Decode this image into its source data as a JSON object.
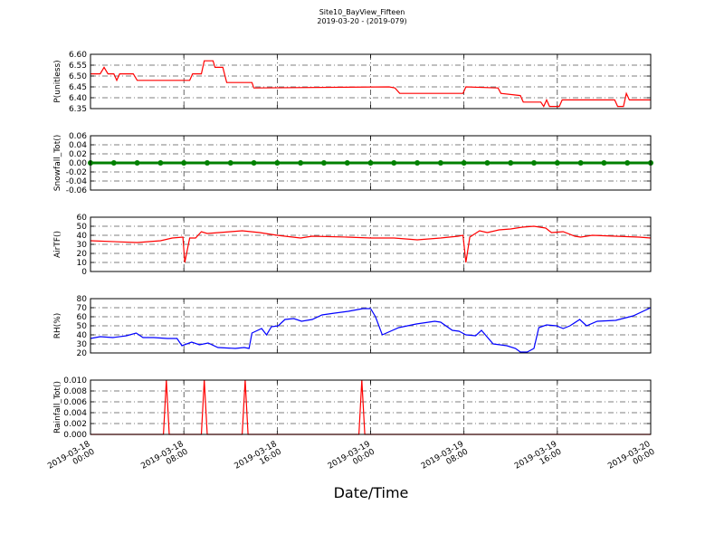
{
  "figure": {
    "title": "Site10_BayView_Fifteen",
    "subtitle": "2019-03-20 - (2019-079)",
    "xlabel": "Date/Time"
  },
  "chart_data": [
    {
      "type": "line",
      "ylabel": "P(unitless)",
      "color": "#ff0000",
      "grid": true,
      "xlim": [
        "2019-03-18 00:00",
        "2019-03-20 00:00"
      ],
      "xticks": [
        "2019-03-18 00:00",
        "2019-03-18 08:00",
        "2019-03-18 16:00",
        "2019-03-19 00:00",
        "2019-03-19 08:00",
        "2019-03-19 16:00",
        "2019-03-20 00:00"
      ],
      "ylim": [
        6.35,
        6.6
      ],
      "yticks": [
        6.35,
        {
          "value": 6.4,
          "label": "6.40"
        },
        6.45,
        {
          "value": 6.5,
          "label": "6.50"
        },
        6.55,
        {
          "value": 6.6,
          "label": "6.60"
        }
      ],
      "x": [
        "2019-03-18 00:00",
        "2019-03-18 00:50",
        "2019-03-18 01:10",
        "2019-03-18 01:30",
        "2019-03-18 02:00",
        "2019-03-18 02:15",
        "2019-03-18 02:30",
        "2019-03-18 03:40",
        "2019-03-18 04:00",
        "2019-03-18 08:30",
        "2019-03-18 08:45",
        "2019-03-18 09:30",
        "2019-03-18 09:45",
        "2019-03-18 10:30",
        "2019-03-18 10:40",
        "2019-03-18 11:20",
        "2019-03-18 11:40",
        "2019-03-18 13:50",
        "2019-03-18 14:00",
        "2019-03-19 01:35",
        "2019-03-19 02:05",
        "2019-03-19 02:30",
        "2019-03-19 07:55",
        "2019-03-19 08:10",
        "2019-03-19 10:55",
        "2019-03-19 11:10",
        "2019-03-19 12:50",
        "2019-03-19 13:05",
        "2019-03-19 14:35",
        "2019-03-19 14:50",
        "2019-03-19 15:05",
        "2019-03-19 15:20",
        "2019-03-19 16:10",
        "2019-03-19 16:25",
        "2019-03-19 20:55",
        "2019-03-19 21:10",
        "2019-03-19 21:40",
        "2019-03-19 21:55",
        "2019-03-19 22:10",
        "2019-03-20 00:00"
      ],
      "values": [
        6.51,
        6.51,
        6.54,
        6.51,
        6.51,
        6.48,
        6.51,
        6.51,
        6.48,
        6.48,
        6.51,
        6.51,
        6.57,
        6.57,
        6.54,
        6.54,
        6.47,
        6.47,
        6.445,
        6.45,
        6.445,
        6.42,
        6.42,
        6.45,
        6.445,
        6.42,
        6.41,
        6.38,
        6.38,
        6.36,
        6.39,
        6.36,
        6.36,
        6.39,
        6.39,
        6.36,
        6.36,
        6.42,
        6.39,
        6.39
      ]
    },
    {
      "type": "line",
      "ylabel": "Snowfall_Tot()",
      "color": "#008000",
      "marker": "o",
      "grid": true,
      "xlim": [
        "2019-03-18 00:00",
        "2019-03-20 00:00"
      ],
      "xticks": [
        "2019-03-18 00:00",
        "2019-03-18 08:00",
        "2019-03-18 16:00",
        "2019-03-19 00:00",
        "2019-03-19 08:00",
        "2019-03-19 16:00",
        "2019-03-20 00:00"
      ],
      "ylim": [
        -0.06,
        0.06
      ],
      "yticks": [
        -0.06,
        -0.04,
        -0.02,
        {
          "value": 0,
          "label": "0.00"
        },
        0.02,
        0.04,
        0.06
      ],
      "x": [
        "2019-03-18 00:00",
        "2019-03-18 02:00",
        "2019-03-18 04:00",
        "2019-03-18 06:00",
        "2019-03-18 08:00",
        "2019-03-18 10:00",
        "2019-03-18 12:00",
        "2019-03-18 14:00",
        "2019-03-18 16:00",
        "2019-03-18 18:00",
        "2019-03-18 20:00",
        "2019-03-18 22:00",
        "2019-03-19 00:00",
        "2019-03-19 02:00",
        "2019-03-19 04:00",
        "2019-03-19 06:00",
        "2019-03-19 08:00",
        "2019-03-19 10:00",
        "2019-03-19 12:00",
        "2019-03-19 14:00",
        "2019-03-19 16:00",
        "2019-03-19 18:00",
        "2019-03-19 20:00",
        "2019-03-19 22:00",
        "2019-03-20 00:00"
      ],
      "values": [
        0,
        0,
        0,
        0,
        0,
        0,
        0,
        0,
        0,
        0,
        0,
        0,
        0,
        0,
        0,
        0,
        0,
        0,
        0,
        0,
        0,
        0,
        0,
        0,
        0
      ]
    },
    {
      "type": "line",
      "ylabel": "AirTF()",
      "color": "#ff0000",
      "grid": true,
      "xlim": [
        "2019-03-18 00:00",
        "2019-03-20 00:00"
      ],
      "xticks": [
        "2019-03-18 00:00",
        "2019-03-18 08:00",
        "2019-03-18 16:00",
        "2019-03-19 00:00",
        "2019-03-19 08:00",
        "2019-03-19 16:00",
        "2019-03-20 00:00"
      ],
      "ylim": [
        0,
        60
      ],
      "yticks": [
        0,
        10,
        20,
        30,
        40,
        50,
        60
      ],
      "x": [
        "2019-03-18 00:00",
        "2019-03-18 04:00",
        "2019-03-18 06:00",
        "2019-03-18 07:00",
        "2019-03-18 07:55",
        "2019-03-18 08:05",
        "2019-03-18 08:30",
        "2019-03-18 09:00",
        "2019-03-18 09:30",
        "2019-03-18 10:00",
        "2019-03-18 12:00",
        "2019-03-18 13:00",
        "2019-03-18 14:30",
        "2019-03-18 16:00",
        "2019-03-18 18:00",
        "2019-03-18 19:00",
        "2019-03-18 22:00",
        "2019-03-19 00:00",
        "2019-03-19 02:00",
        "2019-03-19 04:00",
        "2019-03-19 06:00",
        "2019-03-19 07:30",
        "2019-03-19 07:55",
        "2019-03-19 08:10",
        "2019-03-19 08:30",
        "2019-03-19 09:20",
        "2019-03-19 10:00",
        "2019-03-19 11:00",
        "2019-03-19 12:00",
        "2019-03-19 13:00",
        "2019-03-19 14:00",
        "2019-03-19 15:00",
        "2019-03-19 15:30",
        "2019-03-19 16:30",
        "2019-03-19 17:30",
        "2019-03-19 18:00",
        "2019-03-19 19:00",
        "2019-03-19 21:00",
        "2019-03-19 23:00",
        "2019-03-20 00:00"
      ],
      "values": [
        34,
        32,
        34,
        37,
        38,
        10,
        37,
        37,
        44,
        42,
        44,
        45,
        43,
        40,
        37,
        39,
        38,
        37,
        37,
        35,
        37,
        39,
        40,
        10,
        38,
        45,
        43,
        46,
        47,
        49,
        50,
        48,
        43,
        44,
        39,
        38,
        40,
        39,
        38,
        37
      ]
    },
    {
      "type": "line",
      "ylabel": "RH(%)",
      "color": "#0000ff",
      "grid": true,
      "xlim": [
        "2019-03-18 00:00",
        "2019-03-20 00:00"
      ],
      "xticks": [
        "2019-03-18 00:00",
        "2019-03-18 08:00",
        "2019-03-18 16:00",
        "2019-03-19 00:00",
        "2019-03-19 08:00",
        "2019-03-19 16:00",
        "2019-03-20 00:00"
      ],
      "ylim": [
        20,
        80
      ],
      "yticks": [
        20,
        30,
        40,
        50,
        60,
        70,
        80
      ],
      "x": [
        "2019-03-18 00:00",
        "2019-03-18 00:50",
        "2019-03-18 01:55",
        "2019-03-18 03:05",
        "2019-03-18 03:55",
        "2019-03-18 04:30",
        "2019-03-18 05:25",
        "2019-03-18 06:35",
        "2019-03-18 07:25",
        "2019-03-18 07:50",
        "2019-03-18 08:40",
        "2019-03-18 09:20",
        "2019-03-18 10:05",
        "2019-03-18 10:55",
        "2019-03-18 12:25",
        "2019-03-18 13:10",
        "2019-03-18 13:35",
        "2019-03-18 13:50",
        "2019-03-18 14:40",
        "2019-03-18 15:05",
        "2019-03-18 15:30",
        "2019-03-18 16:05",
        "2019-03-18 16:40",
        "2019-03-18 17:25",
        "2019-03-18 18:05",
        "2019-03-18 19:00",
        "2019-03-18 19:50",
        "2019-03-18 20:55",
        "2019-03-18 22:05",
        "2019-03-18 23:20",
        "2019-03-19 00:00",
        "2019-03-19 00:25",
        "2019-03-19 01:00",
        "2019-03-19 02:25",
        "2019-03-19 03:55",
        "2019-03-19 05:30",
        "2019-03-19 06:00",
        "2019-03-19 07:00",
        "2019-03-19 07:35",
        "2019-03-19 08:10",
        "2019-03-19 09:00",
        "2019-03-19 09:30",
        "2019-03-19 10:30",
        "2019-03-19 11:40",
        "2019-03-19 12:25",
        "2019-03-19 12:50",
        "2019-03-19 13:25",
        "2019-03-19 14:00",
        "2019-03-19 14:25",
        "2019-03-19 15:05",
        "2019-03-19 15:55",
        "2019-03-19 16:30",
        "2019-03-19 17:05",
        "2019-03-19 17:55",
        "2019-03-19 18:30",
        "2019-03-19 19:25",
        "2019-03-19 21:00",
        "2019-03-19 22:30",
        "2019-03-20 00:00"
      ],
      "values": [
        36,
        38,
        37,
        39,
        42,
        37,
        37,
        36,
        36,
        28,
        32,
        29,
        31,
        26,
        25,
        26,
        25,
        42,
        47,
        40,
        49,
        50,
        57,
        58,
        55,
        57,
        62,
        64,
        66,
        69,
        69,
        60,
        40,
        48,
        52,
        55,
        54,
        45,
        44,
        40,
        39,
        45,
        30,
        28,
        25,
        21,
        21,
        25,
        48,
        51,
        50,
        47,
        50,
        57,
        50,
        55,
        56,
        61,
        70
      ]
    },
    {
      "type": "line",
      "ylabel": "Rainfall_Tot()",
      "color": "#ff0000",
      "grid": true,
      "xlim": [
        "2019-03-18 00:00",
        "2019-03-20 00:00"
      ],
      "xticks": [
        {
          "value": "2019-03-18 00:00",
          "label": "2019-03-18\n00:00"
        },
        {
          "value": "2019-03-18 08:00",
          "label": "2019-03-18\n08:00"
        },
        {
          "value": "2019-03-18 16:00",
          "label": "2019-03-18\n16:00"
        },
        {
          "value": "2019-03-19 00:00",
          "label": "2019-03-19\n00:00"
        },
        {
          "value": "2019-03-19 08:00",
          "label": "2019-03-19\n08:00"
        },
        {
          "value": "2019-03-19 16:00",
          "label": "2019-03-19\n16:00"
        },
        {
          "value": "2019-03-20 00:00",
          "label": "2019-03-20\n00:00"
        }
      ],
      "ylim": [
        0,
        0.01
      ],
      "yticks": [
        {
          "value": 0,
          "label": "0.000"
        },
        {
          "value": 0.002,
          "label": "0.002"
        },
        {
          "value": 0.004,
          "label": "0.004"
        },
        {
          "value": 0.006,
          "label": "0.006"
        },
        {
          "value": 0.008,
          "label": "0.008"
        },
        {
          "value": 0.01,
          "label": "0.010"
        }
      ],
      "x": [
        "2019-03-18 00:00",
        "2019-03-18 06:15",
        "2019-03-18 06:30",
        "2019-03-18 06:45",
        "2019-03-18 09:30",
        "2019-03-18 09:45",
        "2019-03-18 10:00",
        "2019-03-18 13:00",
        "2019-03-18 13:15",
        "2019-03-18 13:30",
        "2019-03-18 23:00",
        "2019-03-18 23:15",
        "2019-03-18 23:30",
        "2019-03-20 00:00"
      ],
      "values": [
        0,
        0,
        0.01,
        0,
        0,
        0.01,
        0,
        0,
        0.01,
        0,
        0,
        0.01,
        0,
        0
      ]
    }
  ]
}
